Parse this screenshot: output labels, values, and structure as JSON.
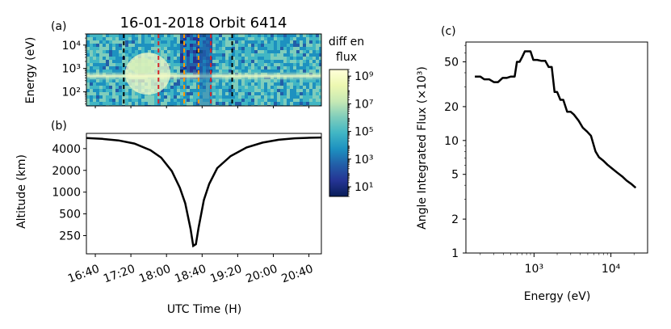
{
  "figure": {
    "panel_a_label": "(a)",
    "panel_b_label": "(b)",
    "panel_c_label": "(c)",
    "title": "16-01-2018 Orbit 6414"
  },
  "chart_data": [
    {
      "id": "a",
      "type": "heatmap",
      "title": "16-01-2018 Orbit 6414",
      "ylabel": "Energy (eV)",
      "y_scale": "log",
      "ylim": [
        25,
        30000
      ],
      "y_ticks": [
        {
          "value": 100,
          "label": "10²"
        },
        {
          "value": 1000,
          "label": "10³"
        },
        {
          "value": 10000,
          "label": "10⁴"
        }
      ],
      "x_range_hours": [
        16.5,
        20.9
      ],
      "colorbar": {
        "label_lines": [
          "diff en",
          "flux"
        ],
        "scale": "log",
        "range": [
          2,
          3000000000
        ],
        "ticks": [
          {
            "value": 10,
            "label": "10¹"
          },
          {
            "value": 1000,
            "label": "10³"
          },
          {
            "value": 100000,
            "label": "10⁵"
          },
          {
            "value": 10000000,
            "label": "10⁷"
          },
          {
            "value": 1000000000,
            "label": "10⁹"
          }
        ],
        "colormap": "YlGnBu_r",
        "colors": [
          "#081d58",
          "#253494",
          "#225ea8",
          "#1d91c0",
          "#41b6c4",
          "#7fcdbb",
          "#c7e9b4",
          "#edf8b1",
          "#ffffd9"
        ]
      },
      "vertical_markers": [
        {
          "time": 17.2,
          "color": "#000000"
        },
        {
          "time": 17.85,
          "color": "#d62728"
        },
        {
          "time": 18.33,
          "color": "#ff9900"
        },
        {
          "time": 18.6,
          "color": "#ff9900"
        },
        {
          "time": 18.83,
          "color": "#d62728"
        },
        {
          "time": 19.23,
          "color": "#000000"
        }
      ]
    },
    {
      "id": "b",
      "type": "line",
      "xlabel": "UTC Time (H)",
      "ylabel": "Altitude (km)",
      "x_tick_labels": [
        "16:40",
        "17:20",
        "18:00",
        "18:40",
        "19:20",
        "20:00",
        "20:40"
      ],
      "x_tick_values": [
        16.667,
        17.333,
        18.0,
        18.667,
        19.333,
        20.0,
        20.667
      ],
      "xlim": [
        16.5,
        20.9
      ],
      "y_scale": "log",
      "ylim": [
        140,
        6500
      ],
      "y_ticks": [
        250,
        500,
        1000,
        2000,
        4000
      ],
      "series": [
        {
          "x": [
            16.5,
            16.8,
            17.1,
            17.4,
            17.7,
            17.9,
            18.1,
            18.25,
            18.35,
            18.45,
            18.5,
            18.55,
            18.6,
            18.7,
            18.8,
            18.95,
            19.2,
            19.5,
            19.8,
            20.1,
            20.4,
            20.7,
            20.9
          ],
          "y": [
            5600,
            5450,
            5200,
            4700,
            3800,
            3000,
            1950,
            1150,
            700,
            310,
            180,
            190,
            320,
            780,
            1300,
            2150,
            3150,
            4150,
            4850,
            5300,
            5550,
            5650,
            5700
          ],
          "color": "#000000"
        }
      ]
    },
    {
      "id": "c",
      "type": "line",
      "xlabel": "Energy (eV)",
      "ylabel": "Angle Integrated Flux (×10³)",
      "x_scale": "log",
      "y_scale": "log",
      "xlim": [
        130,
        30000
      ],
      "ylim": [
        1,
        75
      ],
      "x_ticks": [
        {
          "value": 1000,
          "label": "10³"
        },
        {
          "value": 10000,
          "label": "10⁴"
        }
      ],
      "y_ticks": [
        1,
        2,
        5,
        10,
        20,
        50
      ],
      "series": [
        {
          "x": [
            170,
            200,
            225,
            260,
            300,
            340,
            390,
            440,
            500,
            560,
            600,
            650,
            700,
            760,
            820,
            900,
            980,
            1100,
            1250,
            1400,
            1550,
            1700,
            1850,
            2000,
            2200,
            2400,
            2700,
            3000,
            3300,
            3800,
            4300,
            4900,
            5500,
            6300,
            7000,
            8000,
            9000,
            10500,
            12000,
            14000,
            16000,
            18500,
            21000
          ],
          "y": [
            37,
            37,
            35,
            35,
            33,
            33,
            36,
            36,
            37,
            37,
            50,
            50,
            55,
            62,
            62,
            62,
            52,
            52,
            51,
            51,
            45,
            45,
            27,
            27,
            23,
            23,
            18,
            18,
            17,
            15,
            13,
            12,
            11,
            8,
            7.1,
            6.6,
            6.1,
            5.6,
            5.2,
            4.8,
            4.4,
            4.1,
            3.8
          ],
          "color": "#000000"
        }
      ]
    }
  ]
}
